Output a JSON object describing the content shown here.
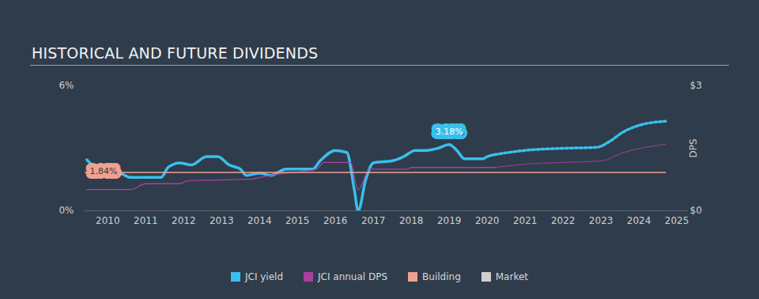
{
  "chart_data": {
    "type": "line",
    "title": "HISTORICAL AND FUTURE DIVIDENDS",
    "xlim": [
      2009.4,
      2025.3
    ],
    "xticks": [
      2010,
      2011,
      2012,
      2013,
      2014,
      2015,
      2016,
      2017,
      2018,
      2019,
      2020,
      2021,
      2022,
      2023,
      2024,
      2025
    ],
    "ylim": [
      0,
      6
    ],
    "yticks": [
      {
        "value": 0,
        "label": "0%"
      },
      {
        "value": 6,
        "label": "6%"
      }
    ],
    "y2lim": [
      0,
      3
    ],
    "y2ticks": [
      {
        "value": 0,
        "label": "$0"
      },
      {
        "value": 3,
        "label": "$3"
      }
    ],
    "y2label": "DPS",
    "grid": false,
    "legend": "bottom",
    "series": [
      {
        "name": "JCI yield",
        "color": "#38c0ec",
        "axis": "y",
        "x": [
          2009.45,
          2009.7,
          2010.0,
          2010.3,
          2010.6,
          2011.0,
          2011.4,
          2011.6,
          2011.9,
          2012.2,
          2012.6,
          2012.9,
          2013.2,
          2013.5,
          2013.65,
          2014.0,
          2014.3,
          2014.7,
          2015.0,
          2015.4,
          2015.6,
          2016.0,
          2016.3,
          2016.5,
          2016.6,
          2016.8,
          2017.0,
          2017.5,
          2017.8,
          2018.1,
          2018.4,
          2018.7,
          2019.0,
          2019.2,
          2019.4,
          2019.9,
          2020.0,
          2020.2
        ],
        "values": [
          2.45,
          2.0,
          1.6,
          1.8,
          1.6,
          1.6,
          1.6,
          2.1,
          2.3,
          2.2,
          2.6,
          2.6,
          2.2,
          2.0,
          1.7,
          1.8,
          1.7,
          2.0,
          2.0,
          2.0,
          2.4,
          2.9,
          2.8,
          1.0,
          0.0,
          1.5,
          2.3,
          2.4,
          2.6,
          2.9,
          2.9,
          3.0,
          3.18,
          2.9,
          2.5,
          2.5,
          2.6,
          2.7
        ],
        "forecast_x": [
          2020.2,
          2021.0,
          2022.0,
          2022.9,
          2023.2,
          2023.6,
          2024.0,
          2024.7
        ],
        "forecast_values": [
          2.7,
          2.9,
          3.0,
          3.05,
          3.3,
          3.8,
          4.1,
          4.3
        ]
      },
      {
        "name": "JCI annual DPS",
        "color": "#a8409f",
        "axis": "y2",
        "x": [
          2009.45,
          2010.6,
          2011.0,
          2011.9,
          2012.1,
          2013.8,
          2014.0,
          2014.5,
          2015.5,
          2015.7,
          2016.4,
          2016.6,
          2016.9,
          2017.9,
          2018.0,
          2020.2
        ],
        "values": [
          0.51,
          0.51,
          0.65,
          0.65,
          0.72,
          0.76,
          0.8,
          0.88,
          1.0,
          1.16,
          1.16,
          0.5,
          1.0,
          1.0,
          1.04,
          1.04
        ],
        "forecast_x": [
          2020.2,
          2021.0,
          2022.0,
          2023.0,
          2023.6,
          2024.7
        ],
        "forecast_values": [
          1.04,
          1.12,
          1.16,
          1.2,
          1.4,
          1.6
        ]
      },
      {
        "name": "Building",
        "color": "#f0a18f",
        "axis": "y",
        "x": [
          2009.4,
          2024.7
        ],
        "values": [
          1.84,
          1.84
        ]
      },
      {
        "name": "Market",
        "color": "#cfcfcf",
        "axis": "y",
        "x": [
          2009.4,
          2024.7
        ],
        "values": [
          null,
          null
        ]
      }
    ],
    "annotations": [
      {
        "text": "3.18%",
        "x": 2019.0,
        "y": 3.18,
        "color": "#38c0ec"
      },
      {
        "text": "1.84%",
        "x": 2009.4,
        "y": 1.84,
        "color": "#f0a18f"
      }
    ]
  }
}
